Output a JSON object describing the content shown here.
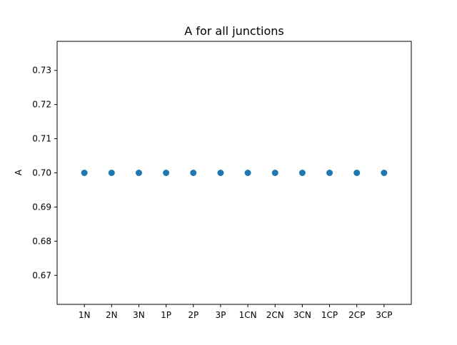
{
  "chart_data": {
    "type": "scatter",
    "title": "A for all junctions",
    "xlabel": "",
    "ylabel": "A",
    "categories": [
      "1N",
      "2N",
      "3N",
      "1P",
      "2P",
      "3P",
      "1CN",
      "2CN",
      "3CN",
      "1CP",
      "2CP",
      "3CP"
    ],
    "series": [
      {
        "values": [
          0.7,
          0.7,
          0.7,
          0.7,
          0.7,
          0.7,
          0.7,
          0.7,
          0.7,
          0.7,
          0.7,
          0.7
        ],
        "color": "#1f77b4"
      }
    ],
    "ylim": [
      0.6615,
      0.7385
    ],
    "yticks": [
      0.67,
      0.68,
      0.69,
      0.7,
      0.71,
      0.72,
      0.73
    ],
    "ytick_labels": [
      "0.67",
      "0.68",
      "0.69",
      "0.70",
      "0.71",
      "0.72",
      "0.73"
    ],
    "grid": false,
    "legend": "none"
  }
}
